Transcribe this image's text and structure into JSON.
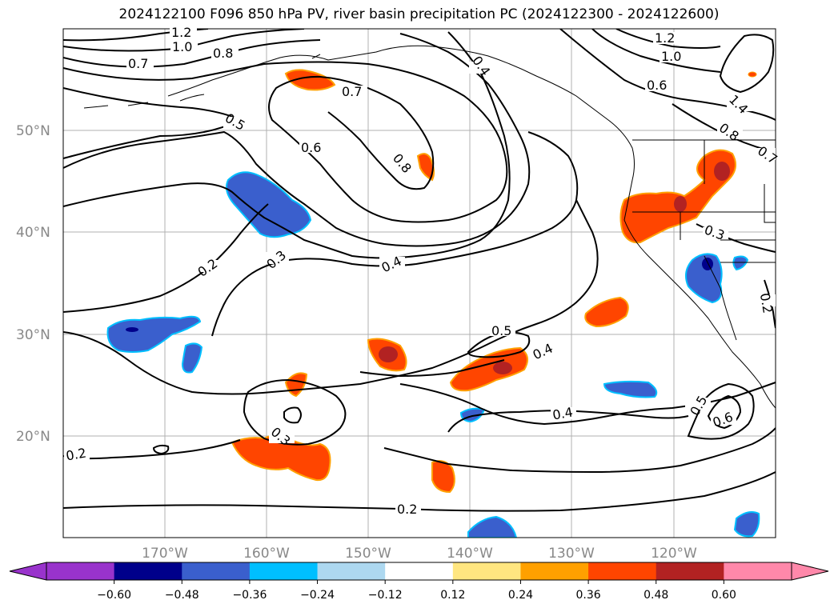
{
  "title": "2024122100 F096 850 hPa PV, river basin precipitation PC (2024122300 - 2024122600)",
  "lat_labels": [
    "50°N",
    "40°N",
    "30°N",
    "20°N"
  ],
  "lon_labels": [
    "170°W",
    "160°W",
    "150°W",
    "140°W",
    "130°W",
    "120°W"
  ],
  "contour_labels": [
    "1.2",
    "1.0",
    "0.8",
    "0.7",
    "0.7",
    "0.5",
    "0.6",
    "0.8",
    "0.4",
    "1.2",
    "1.0",
    "0.6",
    "1.4",
    "0.8",
    "0.7",
    "0.2",
    "0.3",
    "0.4",
    "0.3",
    "0.5",
    "0.4",
    "0.4",
    "0.5",
    "0.6",
    "0.3",
    "0.2",
    "0.2",
    "0.2"
  ],
  "colorbar": {
    "ticks": [
      "−0.60",
      "−0.48",
      "−0.36",
      "−0.24",
      "−0.12",
      "0.12",
      "0.24",
      "0.36",
      "0.48",
      "0.60"
    ],
    "colors": [
      "#9933cc",
      "#00008b",
      "#3a5fcd",
      "#00bfff",
      "#add8f0",
      "#ffffff",
      "#ffe680",
      "#ffa000",
      "#ff4500",
      "#b22222",
      "#ff88aa"
    ]
  }
}
